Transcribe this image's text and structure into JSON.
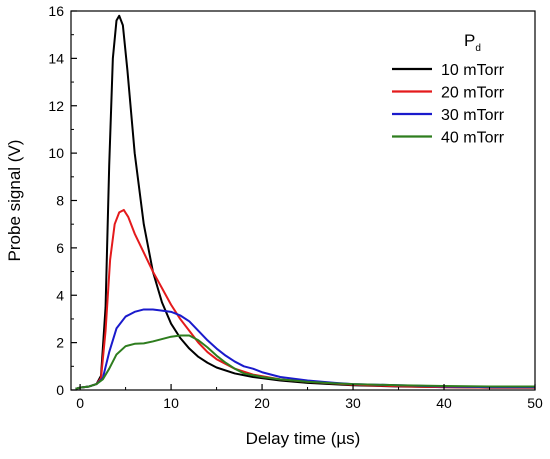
{
  "chart_data": {
    "type": "line",
    "xlabel": "Delay time (µs)",
    "ylabel": "Probe signal (V)",
    "xlim": [
      -1,
      50
    ],
    "ylim": [
      0,
      16
    ],
    "x_ticks": [
      0,
      10,
      20,
      30,
      40,
      50
    ],
    "y_ticks": [
      0,
      2,
      4,
      6,
      8,
      10,
      12,
      14,
      16
    ],
    "grid": false,
    "legend": {
      "title_main": "P",
      "title_sub": "d",
      "placement": "top-right"
    },
    "series": [
      {
        "name": "10 mTorr",
        "color": "#000000",
        "points": [
          [
            -0.5,
            0.05
          ],
          [
            0,
            0.1
          ],
          [
            1,
            0.15
          ],
          [
            1.8,
            0.25
          ],
          [
            2.3,
            0.6
          ],
          [
            2.8,
            3.5
          ],
          [
            3.2,
            9.5
          ],
          [
            3.6,
            14.0
          ],
          [
            4.0,
            15.6
          ],
          [
            4.3,
            15.8
          ],
          [
            4.7,
            15.4
          ],
          [
            5.2,
            13.5
          ],
          [
            6,
            10.0
          ],
          [
            7,
            7.0
          ],
          [
            8,
            5.0
          ],
          [
            9,
            3.7
          ],
          [
            10,
            2.8
          ],
          [
            11,
            2.2
          ],
          [
            12,
            1.75
          ],
          [
            13,
            1.4
          ],
          [
            14,
            1.15
          ],
          [
            15,
            0.95
          ],
          [
            17,
            0.7
          ],
          [
            19,
            0.55
          ],
          [
            22,
            0.4
          ],
          [
            25,
            0.3
          ],
          [
            30,
            0.2
          ],
          [
            35,
            0.15
          ],
          [
            40,
            0.12
          ],
          [
            45,
            0.1
          ],
          [
            50,
            0.1
          ]
        ]
      },
      {
        "name": "20 mTorr",
        "color": "#e41a1c",
        "points": [
          [
            -0.5,
            0.05
          ],
          [
            0,
            0.1
          ],
          [
            1,
            0.15
          ],
          [
            1.8,
            0.25
          ],
          [
            2.3,
            0.5
          ],
          [
            2.8,
            2.5
          ],
          [
            3.3,
            5.5
          ],
          [
            3.8,
            7.0
          ],
          [
            4.3,
            7.5
          ],
          [
            4.8,
            7.6
          ],
          [
            5.3,
            7.3
          ],
          [
            6,
            6.6
          ],
          [
            7,
            5.8
          ],
          [
            8,
            5.0
          ],
          [
            9,
            4.3
          ],
          [
            10,
            3.6
          ],
          [
            11,
            3.0
          ],
          [
            12,
            2.5
          ],
          [
            13,
            2.0
          ],
          [
            14,
            1.6
          ],
          [
            15,
            1.3
          ],
          [
            17,
            0.9
          ],
          [
            19,
            0.65
          ],
          [
            22,
            0.45
          ],
          [
            25,
            0.35
          ],
          [
            30,
            0.22
          ],
          [
            35,
            0.16
          ],
          [
            40,
            0.12
          ],
          [
            45,
            0.1
          ],
          [
            50,
            0.1
          ]
        ]
      },
      {
        "name": "30 mTorr",
        "color": "#1a1acc",
        "points": [
          [
            -0.5,
            0.05
          ],
          [
            0,
            0.1
          ],
          [
            1,
            0.15
          ],
          [
            1.8,
            0.25
          ],
          [
            2.5,
            0.5
          ],
          [
            3.2,
            1.6
          ],
          [
            4,
            2.6
          ],
          [
            5,
            3.1
          ],
          [
            6,
            3.3
          ],
          [
            7,
            3.4
          ],
          [
            8,
            3.4
          ],
          [
            9,
            3.35
          ],
          [
            10,
            3.3
          ],
          [
            11,
            3.15
          ],
          [
            12,
            2.9
          ],
          [
            13,
            2.5
          ],
          [
            14,
            2.1
          ],
          [
            15,
            1.75
          ],
          [
            16,
            1.45
          ],
          [
            17,
            1.2
          ],
          [
            18,
            1.0
          ],
          [
            19,
            0.9
          ],
          [
            20,
            0.75
          ],
          [
            22,
            0.55
          ],
          [
            25,
            0.4
          ],
          [
            28,
            0.3
          ],
          [
            30,
            0.25
          ],
          [
            35,
            0.2
          ],
          [
            40,
            0.15
          ],
          [
            45,
            0.12
          ],
          [
            50,
            0.12
          ]
        ]
      },
      {
        "name": "40 mTorr",
        "color": "#2e7d1e",
        "points": [
          [
            -0.5,
            0.05
          ],
          [
            0,
            0.1
          ],
          [
            1,
            0.15
          ],
          [
            1.8,
            0.25
          ],
          [
            2.5,
            0.45
          ],
          [
            3.2,
            0.9
          ],
          [
            4,
            1.5
          ],
          [
            5,
            1.85
          ],
          [
            6,
            1.95
          ],
          [
            7,
            1.97
          ],
          [
            8,
            2.05
          ],
          [
            9,
            2.15
          ],
          [
            10,
            2.25
          ],
          [
            11,
            2.3
          ],
          [
            12,
            2.3
          ],
          [
            13,
            2.1
          ],
          [
            14,
            1.8
          ],
          [
            15,
            1.45
          ],
          [
            16,
            1.15
          ],
          [
            17,
            0.9
          ],
          [
            18,
            0.7
          ],
          [
            20,
            0.55
          ],
          [
            22,
            0.45
          ],
          [
            25,
            0.35
          ],
          [
            28,
            0.28
          ],
          [
            30,
            0.25
          ],
          [
            35,
            0.2
          ],
          [
            40,
            0.17
          ],
          [
            45,
            0.15
          ],
          [
            50,
            0.15
          ]
        ]
      }
    ]
  }
}
